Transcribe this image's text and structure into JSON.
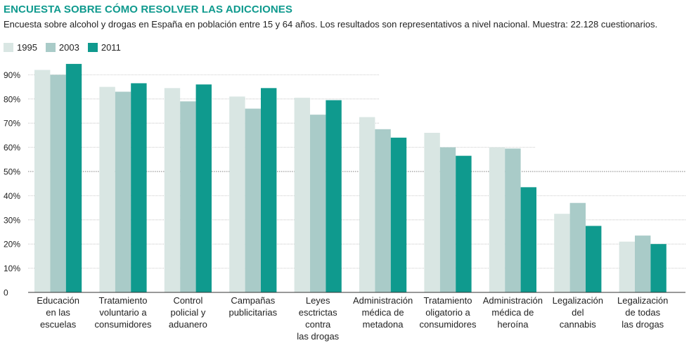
{
  "title": "ENCUESTA SOBRE CÓMO RESOLVER LAS ADICCIONES",
  "subtitle": "Encuesta sobre alcohol y drogas en España en población entre 15 y 64 años. Los resultados son representativos a nivel nacional. Muestra: 22.128 cuestionarios.",
  "colors": {
    "s1995": "#d9e6e3",
    "s2003": "#a9cbc8",
    "s2011": "#0f9a8e",
    "axis": "#333333",
    "grid": "#bdbdbd"
  },
  "chart_data": {
    "type": "bar",
    "categories": [
      [
        "Educación",
        "en las",
        "escuelas"
      ],
      [
        "Tratamiento",
        "voluntario a",
        "consumidores"
      ],
      [
        "Control",
        "policial y",
        "aduanero"
      ],
      [
        "Campañas",
        "publicitarias"
      ],
      [
        "Leyes",
        "esctrictas",
        "contra",
        "las drogas"
      ],
      [
        "Administración",
        "médica de",
        "metadona"
      ],
      [
        "Tratamiento",
        "oligatorio a",
        "consumidores"
      ],
      [
        "Administración",
        "médica de",
        "heroína"
      ],
      [
        "Legalización",
        "del",
        "cannabis"
      ],
      [
        "Legalización",
        "de todas",
        "las drogas"
      ]
    ],
    "series": [
      {
        "name": "1995",
        "values": [
          92,
          85,
          84.5,
          81,
          80.5,
          72.5,
          66,
          60,
          32.5,
          21
        ]
      },
      {
        "name": "2003",
        "values": [
          90,
          83,
          79,
          76,
          73.5,
          67.5,
          60,
          59.5,
          37,
          23.5
        ]
      },
      {
        "name": "2011",
        "values": [
          94.5,
          86.5,
          86,
          84.5,
          79.5,
          64,
          56.5,
          43.5,
          27.5,
          20
        ]
      }
    ],
    "yticks": [
      "0",
      "10%",
      "20%",
      "30%",
      "40%",
      "50%",
      "60%",
      "70%",
      "80%",
      "90%"
    ],
    "ylim": [
      0,
      100
    ],
    "grid": true,
    "legend": "top-left"
  }
}
